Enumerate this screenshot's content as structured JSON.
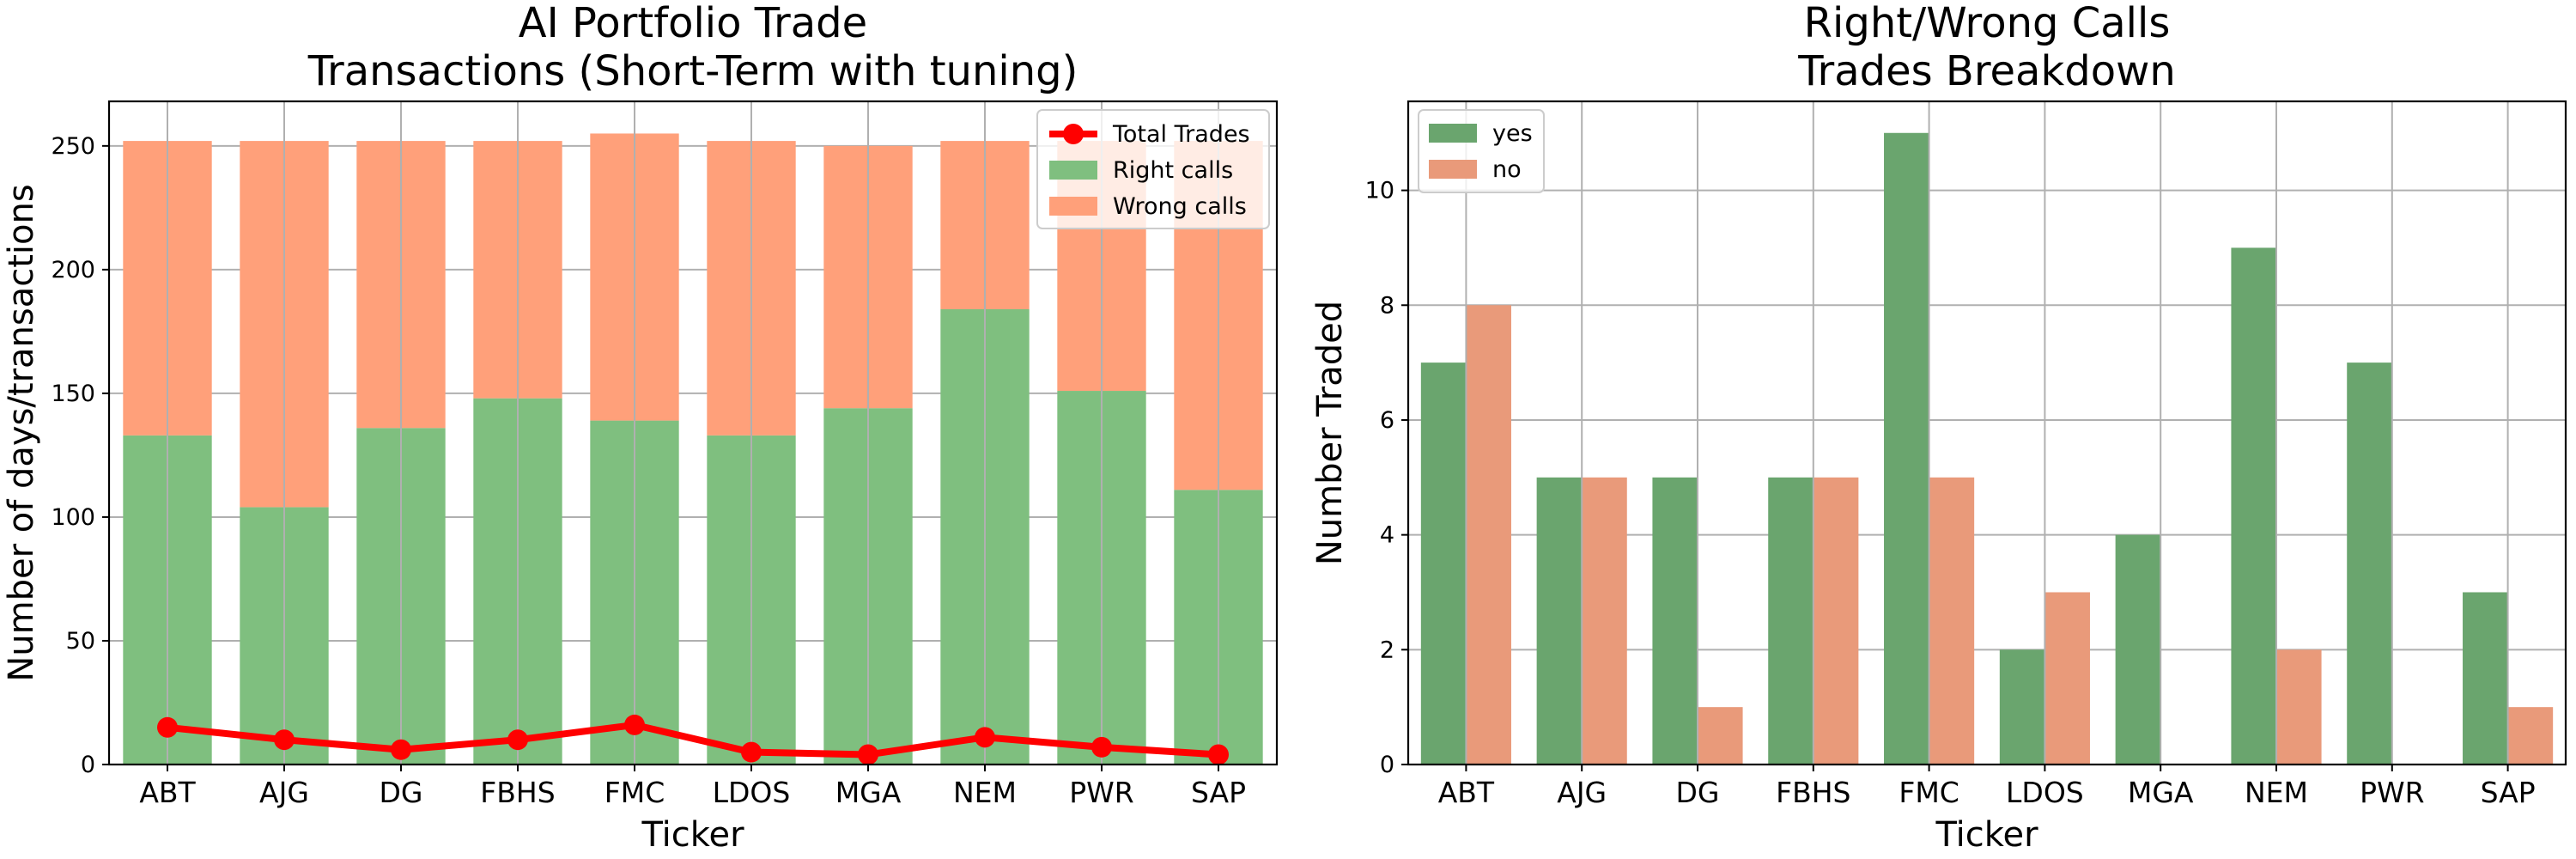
{
  "chart_data": [
    {
      "type": "bar",
      "title": "AI Portfolio Trade\nTransactions (Short-Term with tuning)",
      "xlabel": "Ticker",
      "ylabel": "Number of days/transactions",
      "categories": [
        "ABT",
        "AJG",
        "DG",
        "FBHS",
        "FMC",
        "LDOS",
        "MGA",
        "NEM",
        "PWR",
        "SAP"
      ],
      "ylim": [
        0,
        268
      ],
      "yticks": [
        0,
        50,
        100,
        150,
        200,
        250
      ],
      "grid": true,
      "legend_position": "top-right",
      "stacked": true,
      "series": [
        {
          "name": "Right calls",
          "kind": "bar",
          "color": "#7fbf7f",
          "values": [
            133,
            104,
            136,
            148,
            139,
            133,
            144,
            184,
            151,
            111
          ]
        },
        {
          "name": "Wrong calls",
          "kind": "bar",
          "color": "#ffa07a",
          "values": [
            119,
            148,
            116,
            104,
            116,
            119,
            106,
            68,
            101,
            141
          ]
        },
        {
          "name": "Total Trades",
          "kind": "line",
          "color": "#ff0000",
          "values": [
            15,
            10,
            6,
            10,
            16,
            5,
            4,
            11,
            7,
            4
          ]
        }
      ],
      "legend_order": [
        "Total Trades",
        "Right calls",
        "Wrong calls"
      ]
    },
    {
      "type": "bar",
      "title": "Right/Wrong Calls\nTrades Breakdown",
      "xlabel": "Ticker",
      "ylabel": "Number Traded",
      "categories": [
        "ABT",
        "AJG",
        "DG",
        "FBHS",
        "FMC",
        "LDOS",
        "MGA",
        "NEM",
        "PWR",
        "SAP"
      ],
      "ylim": [
        0,
        11.55
      ],
      "yticks": [
        0,
        2,
        4,
        6,
        8,
        10
      ],
      "grid": true,
      "legend_position": "top-left",
      "series": [
        {
          "name": "yes",
          "color": "#6aa56e",
          "values": [
            7,
            5,
            5,
            5,
            11,
            2,
            4,
            9,
            7,
            3
          ]
        },
        {
          "name": "no",
          "color": "#e99a7a",
          "values": [
            8,
            5,
            1,
            5,
            5,
            3,
            0,
            2,
            0,
            1
          ]
        }
      ]
    }
  ]
}
